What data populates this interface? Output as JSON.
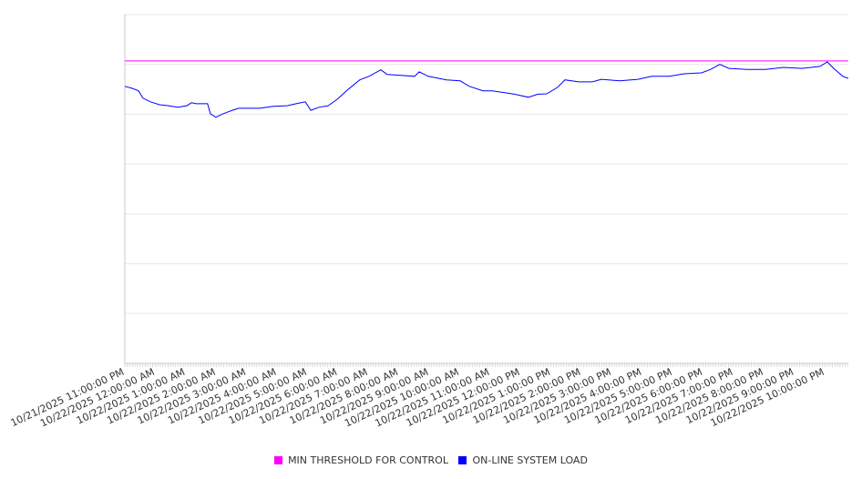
{
  "chart_data": {
    "type": "line",
    "title": "",
    "xlabel": "",
    "ylabel": "",
    "grid": true,
    "legend_placement": "bottom-center",
    "x_unit": "hours since 10/21/2025 11:00:00 PM",
    "xlim": [
      0,
      23.77
    ],
    "ylim": [
      0,
      7
    ],
    "y_gridlines": 7,
    "x_tick_labels": [
      "10/21/2025 11:00:00 PM",
      "10/22/2025 12:00:00 AM",
      "10/22/2025 1:00:00 AM",
      "10/22/2025 2:00:00 AM",
      "10/22/2025 3:00:00 AM",
      "10/22/2025 4:00:00 AM",
      "10/22/2025 5:00:00 AM",
      "10/22/2025 6:00:00 AM",
      "10/22/2025 7:00:00 AM",
      "10/22/2025 8:00:00 AM",
      "10/22/2025 9:00:00 AM",
      "10/22/2025 10:00:00 AM",
      "10/22/2025 11:00:00 AM",
      "10/22/2025 12:00:00 PM",
      "10/22/2025 1:00:00 PM",
      "10/22/2025 2:00:00 PM",
      "10/22/2025 3:00:00 PM",
      "10/22/2025 4:00:00 PM",
      "10/22/2025 5:00:00 PM",
      "10/22/2025 6:00:00 PM",
      "10/22/2025 7:00:00 PM",
      "10/22/2025 8:00:00 PM",
      "10/22/2025 9:00:00 PM",
      "10/22/2025 10:00:00 PM"
    ],
    "series": [
      {
        "name": "MIN THRESHOLD FOR CONTROL",
        "color": "#ff00ff",
        "points": [
          [
            0,
            6.07
          ],
          [
            23.77,
            6.07
          ]
        ]
      },
      {
        "name": "ON-LINE SYSTEM LOAD",
        "color": "#0000ff",
        "points": [
          [
            0,
            5.56
          ],
          [
            0.24,
            5.52
          ],
          [
            0.45,
            5.47
          ],
          [
            0.6,
            5.32
          ],
          [
            0.84,
            5.25
          ],
          [
            1.14,
            5.19
          ],
          [
            1.44,
            5.17
          ],
          [
            1.74,
            5.14
          ],
          [
            2.04,
            5.17
          ],
          [
            2.19,
            5.23
          ],
          [
            2.34,
            5.21
          ],
          [
            2.72,
            5.21
          ],
          [
            2.81,
            5.01
          ],
          [
            2.99,
            4.94
          ],
          [
            3.23,
            5.01
          ],
          [
            3.53,
            5.08
          ],
          [
            3.74,
            5.12
          ],
          [
            4.43,
            5.12
          ],
          [
            4.88,
            5.16
          ],
          [
            5.33,
            5.17
          ],
          [
            5.63,
            5.21
          ],
          [
            5.93,
            5.25
          ],
          [
            6.11,
            5.08
          ],
          [
            6.38,
            5.14
          ],
          [
            6.68,
            5.17
          ],
          [
            6.98,
            5.3
          ],
          [
            7.28,
            5.47
          ],
          [
            7.72,
            5.69
          ],
          [
            8.02,
            5.76
          ],
          [
            8.41,
            5.89
          ],
          [
            8.62,
            5.8
          ],
          [
            9.07,
            5.78
          ],
          [
            9.52,
            5.76
          ],
          [
            9.67,
            5.85
          ],
          [
            9.97,
            5.76
          ],
          [
            10.57,
            5.69
          ],
          [
            11.02,
            5.67
          ],
          [
            11.32,
            5.56
          ],
          [
            11.77,
            5.47
          ],
          [
            12.07,
            5.47
          ],
          [
            12.51,
            5.43
          ],
          [
            12.81,
            5.4
          ],
          [
            13.26,
            5.34
          ],
          [
            13.56,
            5.4
          ],
          [
            13.86,
            5.41
          ],
          [
            14.22,
            5.54
          ],
          [
            14.46,
            5.69
          ],
          [
            14.91,
            5.65
          ],
          [
            15.36,
            5.65
          ],
          [
            15.66,
            5.7
          ],
          [
            16.26,
            5.67
          ],
          [
            16.86,
            5.7
          ],
          [
            17.31,
            5.76
          ],
          [
            17.9,
            5.76
          ],
          [
            18.35,
            5.81
          ],
          [
            18.95,
            5.83
          ],
          [
            19.25,
            5.9
          ],
          [
            19.55,
            6.0
          ],
          [
            19.85,
            5.92
          ],
          [
            20.45,
            5.9
          ],
          [
            21.05,
            5.9
          ],
          [
            21.65,
            5.94
          ],
          [
            22.25,
            5.92
          ],
          [
            22.84,
            5.96
          ],
          [
            23.08,
            6.05
          ],
          [
            23.29,
            5.92
          ],
          [
            23.59,
            5.76
          ],
          [
            23.77,
            5.72
          ]
        ]
      }
    ]
  }
}
